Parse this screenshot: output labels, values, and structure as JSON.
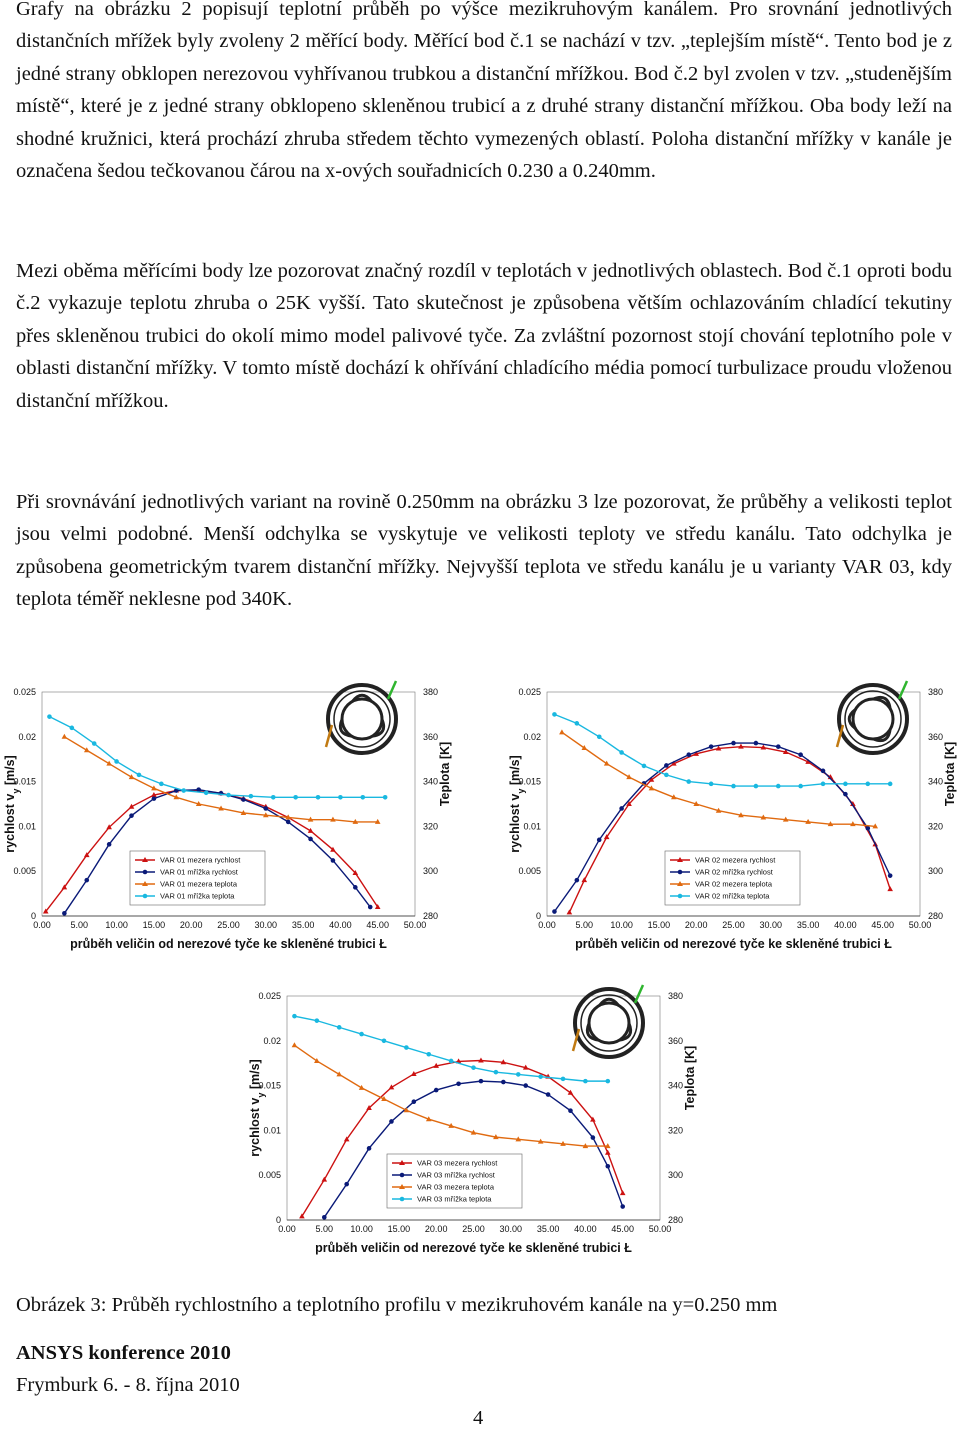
{
  "paragraphs": {
    "p1": "Grafy na obrázku 2 popisují teplotní průběh po výšce mezikruhovým kanálem. Pro srovnání jednotlivých distančních mřížek byly zvoleny 2 měřící body. Měřící bod č.1 se nachází v tzv. „teplejším místě“. Tento bod je z jedné strany obklopen nerezovou vyhřívanou trubkou a distanční mřížkou. Bod č.2 byl zvolen v tzv. „studenějším místě“, které je z jedné strany obklopeno skleněnou trubicí a z druhé strany distanční mřížkou. Oba body leží na shodné kružnici, která prochází zhruba středem těchto vymezených oblastí. Poloha distanční mřížky v kanále je označena šedou tečkovanou čárou na x-ových souřadnicích 0.230 a 0.240mm.",
    "p2": "Mezi oběma měřícími body lze pozorovat značný rozdíl v teplotách v jednotlivých oblastech. Bod č.1 oproti bodu č.2 vykazuje teplotu zhruba o 25K vyšší. Tato skutečnost je způsobena větším ochlazováním chladící tekutiny přes skleněnou trubici do okolí mimo model palivové tyče. Za zvláštní pozornost stojí chování teplotního pole v oblasti distanční mřížky. V tomto místě dochází k ohřívání chladícího média pomocí turbulizace proudu vloženou distanční mřížkou.",
    "p3": "Při srovnávání jednotlivých variant na rovině 0.250mm na obrázku 3 lze pozorovat, že průběhy a velikosti teplot jsou velmi podobné. Menší odchylka se vyskytuje ve velikosti teploty ve středu kanálu. Tato odchylka je způsobena geometrickým tvarem distanční mřížky. Nejvyšší teplota ve středu kanálu je u varianty VAR 03, kdy teplota téměř neklesne pod 340K."
  },
  "colors": {
    "mezera_rychlost": "#cc1111",
    "mrizka_rychlost": "#0a1a78",
    "mezera_teplota": "#e06a10",
    "mrizka_teplota": "#19b8e0"
  },
  "axes": {
    "ylabel_left": "rychlost v",
    "ylabel_sub": "y",
    "ylabel_unit": " [m/s]",
    "ylabel_right": "Teplota [K]",
    "xlabel": "průběh veličin od nerezové tyče ke skleněné trubici",
    "xlabel_symbol": "Ł",
    "left_ticks": [
      "0",
      "0.005",
      "0.01",
      "0.015",
      "0.02",
      "0.025"
    ],
    "right_ticks": [
      "280",
      "300",
      "320",
      "340",
      "360",
      "380"
    ],
    "x_ticks": [
      "0.00",
      "5.00",
      "10.00",
      "15.00",
      "20.00",
      "25.00",
      "30.00",
      "35.00",
      "40.00",
      "45.00",
      "50.00"
    ]
  },
  "chart_data": [
    {
      "type": "line",
      "x_range": [
        0,
        50
      ],
      "y_left_range": [
        0,
        0.025
      ],
      "y_right_range": [
        280,
        380
      ],
      "legend": [
        "VAR 01 mezera rychlost",
        "VAR 01 mřížka rychlost",
        "VAR 01 mezera teplota",
        "VAR 01 mřížka teplota"
      ],
      "series": [
        {
          "name": "VAR 01 mezera rychlost",
          "axis": "left",
          "points": [
            [
              0.5,
              0.0005
            ],
            [
              3,
              0.0032
            ],
            [
              6,
              0.0068
            ],
            [
              9,
              0.0099
            ],
            [
              12,
              0.0122
            ],
            [
              15,
              0.0135
            ],
            [
              18,
              0.014
            ],
            [
              21,
              0.014
            ],
            [
              24,
              0.0137
            ],
            [
              27,
              0.0131
            ],
            [
              30,
              0.0122
            ],
            [
              33,
              0.011
            ],
            [
              36,
              0.0095
            ],
            [
              39,
              0.0074
            ],
            [
              42,
              0.0048
            ],
            [
              45,
              0.001
            ]
          ]
        },
        {
          "name": "VAR 01 mřížka rychlost",
          "axis": "left",
          "points": [
            [
              3,
              0.0003
            ],
            [
              6,
              0.004
            ],
            [
              9,
              0.008
            ],
            [
              12,
              0.0112
            ],
            [
              15,
              0.0131
            ],
            [
              18,
              0.014
            ],
            [
              21,
              0.0141
            ],
            [
              24,
              0.0137
            ],
            [
              27,
              0.013
            ],
            [
              30,
              0.012
            ],
            [
              33,
              0.0105
            ],
            [
              36,
              0.0086
            ],
            [
              39,
              0.0062
            ],
            [
              42,
              0.0032
            ],
            [
              44,
              0.001
            ]
          ]
        },
        {
          "name": "VAR 01 mezera teplota",
          "axis": "right",
          "points": [
            [
              3,
              360
            ],
            [
              6,
              354
            ],
            [
              9,
              348
            ],
            [
              12,
              342
            ],
            [
              15,
              337
            ],
            [
              18,
              333
            ],
            [
              21,
              330
            ],
            [
              24,
              328
            ],
            [
              27,
              326
            ],
            [
              30,
              325
            ],
            [
              33,
              324
            ],
            [
              36,
              323
            ],
            [
              39,
              323
            ],
            [
              42,
              322
            ],
            [
              45,
              322
            ]
          ]
        },
        {
          "name": "VAR 01 mřížka teplota",
          "axis": "right",
          "points": [
            [
              1,
              369
            ],
            [
              4,
              364
            ],
            [
              7,
              357
            ],
            [
              10,
              349
            ],
            [
              13,
              343
            ],
            [
              16,
              339
            ],
            [
              19,
              336
            ],
            [
              22,
              335
            ],
            [
              25,
              334
            ],
            [
              28,
              333.5
            ],
            [
              31,
              333
            ],
            [
              34,
              333
            ],
            [
              37,
              333
            ],
            [
              40,
              333
            ],
            [
              43,
              333
            ],
            [
              46,
              333
            ]
          ]
        }
      ]
    },
    {
      "type": "line",
      "x_range": [
        0,
        50
      ],
      "y_left_range": [
        0,
        0.025
      ],
      "y_right_range": [
        280,
        380
      ],
      "legend": [
        "VAR 02 mezera rychlost",
        "VAR 02 mřížka rychlost",
        "VAR 02 mezera teplota",
        "VAR 02 mřížka teplota"
      ],
      "series": [
        {
          "name": "VAR 02 mezera rychlost",
          "axis": "left",
          "points": [
            [
              3,
              0.0004
            ],
            [
              5,
              0.004
            ],
            [
              8,
              0.0088
            ],
            [
              11,
              0.0125
            ],
            [
              14,
              0.0152
            ],
            [
              17,
              0.017
            ],
            [
              20,
              0.0181
            ],
            [
              23,
              0.0187
            ],
            [
              26,
              0.0189
            ],
            [
              29,
              0.0188
            ],
            [
              32,
              0.0183
            ],
            [
              35,
              0.0172
            ],
            [
              38,
              0.0155
            ],
            [
              41,
              0.0125
            ],
            [
              44,
              0.008
            ],
            [
              46,
              0.003
            ]
          ]
        },
        {
          "name": "VAR 02 mřížka rychlost",
          "axis": "left",
          "points": [
            [
              1,
              0.0005
            ],
            [
              4,
              0.004
            ],
            [
              7,
              0.0085
            ],
            [
              10,
              0.012
            ],
            [
              13,
              0.0148
            ],
            [
              16,
              0.0168
            ],
            [
              19,
              0.018
            ],
            [
              22,
              0.0189
            ],
            [
              25,
              0.0193
            ],
            [
              28,
              0.0193
            ],
            [
              31,
              0.0189
            ],
            [
              34,
              0.018
            ],
            [
              37,
              0.0162
            ],
            [
              40,
              0.0136
            ],
            [
              43,
              0.0098
            ],
            [
              46,
              0.0045
            ]
          ]
        },
        {
          "name": "VAR 02 mezera teplota",
          "axis": "right",
          "points": [
            [
              2,
              362
            ],
            [
              5,
              355
            ],
            [
              8,
              348
            ],
            [
              11,
              342
            ],
            [
              14,
              337
            ],
            [
              17,
              333
            ],
            [
              20,
              330
            ],
            [
              23,
              327
            ],
            [
              26,
              325
            ],
            [
              29,
              324
            ],
            [
              32,
              323
            ],
            [
              35,
              322
            ],
            [
              38,
              321
            ],
            [
              41,
              321
            ],
            [
              44,
              320
            ]
          ]
        },
        {
          "name": "VAR 02 mřížka teplota",
          "axis": "right",
          "points": [
            [
              1,
              370
            ],
            [
              4,
              366
            ],
            [
              7,
              360
            ],
            [
              10,
              353
            ],
            [
              13,
              347
            ],
            [
              16,
              343
            ],
            [
              19,
              340
            ],
            [
              22,
              339
            ],
            [
              25,
              338
            ],
            [
              28,
              338
            ],
            [
              31,
              338
            ],
            [
              34,
              338
            ],
            [
              37,
              339
            ],
            [
              40,
              339
            ],
            [
              43,
              339
            ],
            [
              46,
              339
            ]
          ]
        }
      ]
    },
    {
      "type": "line",
      "x_range": [
        0,
        50
      ],
      "y_left_range": [
        0,
        0.025
      ],
      "y_right_range": [
        280,
        380
      ],
      "legend": [
        "VAR 03 mezera rychlost",
        "VAR 03 mřížka rychlost",
        "VAR 03 mezera teplota",
        "VAR 03 mřížka teplota"
      ],
      "series": [
        {
          "name": "VAR 03 mezera rychlost",
          "axis": "left",
          "points": [
            [
              2,
              0.0004
            ],
            [
              5,
              0.0045
            ],
            [
              8,
              0.009
            ],
            [
              11,
              0.0125
            ],
            [
              14,
              0.0148
            ],
            [
              17,
              0.0163
            ],
            [
              20,
              0.0172
            ],
            [
              23,
              0.0177
            ],
            [
              26,
              0.0178
            ],
            [
              29,
              0.0176
            ],
            [
              32,
              0.017
            ],
            [
              35,
              0.016
            ],
            [
              38,
              0.0142
            ],
            [
              41,
              0.0112
            ],
            [
              43,
              0.0075
            ],
            [
              45,
              0.003
            ]
          ]
        },
        {
          "name": "VAR 03 mřížka rychlost",
          "axis": "left",
          "points": [
            [
              5,
              0.0003
            ],
            [
              8,
              0.004
            ],
            [
              11,
              0.008
            ],
            [
              14,
              0.011
            ],
            [
              17,
              0.0132
            ],
            [
              20,
              0.0145
            ],
            [
              23,
              0.0152
            ],
            [
              26,
              0.0155
            ],
            [
              29,
              0.0154
            ],
            [
              32,
              0.015
            ],
            [
              35,
              0.014
            ],
            [
              38,
              0.0122
            ],
            [
              41,
              0.0092
            ],
            [
              43,
              0.006
            ],
            [
              45,
              0.0015
            ]
          ]
        },
        {
          "name": "VAR 03 mezera teplota",
          "axis": "right",
          "points": [
            [
              1,
              358
            ],
            [
              4,
              351
            ],
            [
              7,
              345
            ],
            [
              10,
              339
            ],
            [
              13,
              334
            ],
            [
              16,
              329
            ],
            [
              19,
              325
            ],
            [
              22,
              322
            ],
            [
              25,
              319
            ],
            [
              28,
              317
            ],
            [
              31,
              316
            ],
            [
              34,
              315
            ],
            [
              37,
              314
            ],
            [
              40,
              313
            ],
            [
              43,
              313
            ]
          ]
        },
        {
          "name": "VAR 03 mřížka teplota",
          "axis": "right",
          "points": [
            [
              1,
              371
            ],
            [
              4,
              369
            ],
            [
              7,
              366
            ],
            [
              10,
              363
            ],
            [
              13,
              360
            ],
            [
              16,
              357
            ],
            [
              19,
              354
            ],
            [
              22,
              351
            ],
            [
              25,
              348
            ],
            [
              28,
              346
            ],
            [
              31,
              345
            ],
            [
              34,
              344
            ],
            [
              37,
              343
            ],
            [
              40,
              342
            ],
            [
              43,
              342
            ]
          ]
        }
      ]
    }
  ],
  "figure_caption": "Obrázek 3: Průběh rychlostního a teplotního profilu v mezikruhovém kanále na y=0.250 mm",
  "footer": {
    "conference": "ANSYS konference 2010",
    "location": "Frymburk 6. - 8. října 2010",
    "page_number": "4"
  }
}
